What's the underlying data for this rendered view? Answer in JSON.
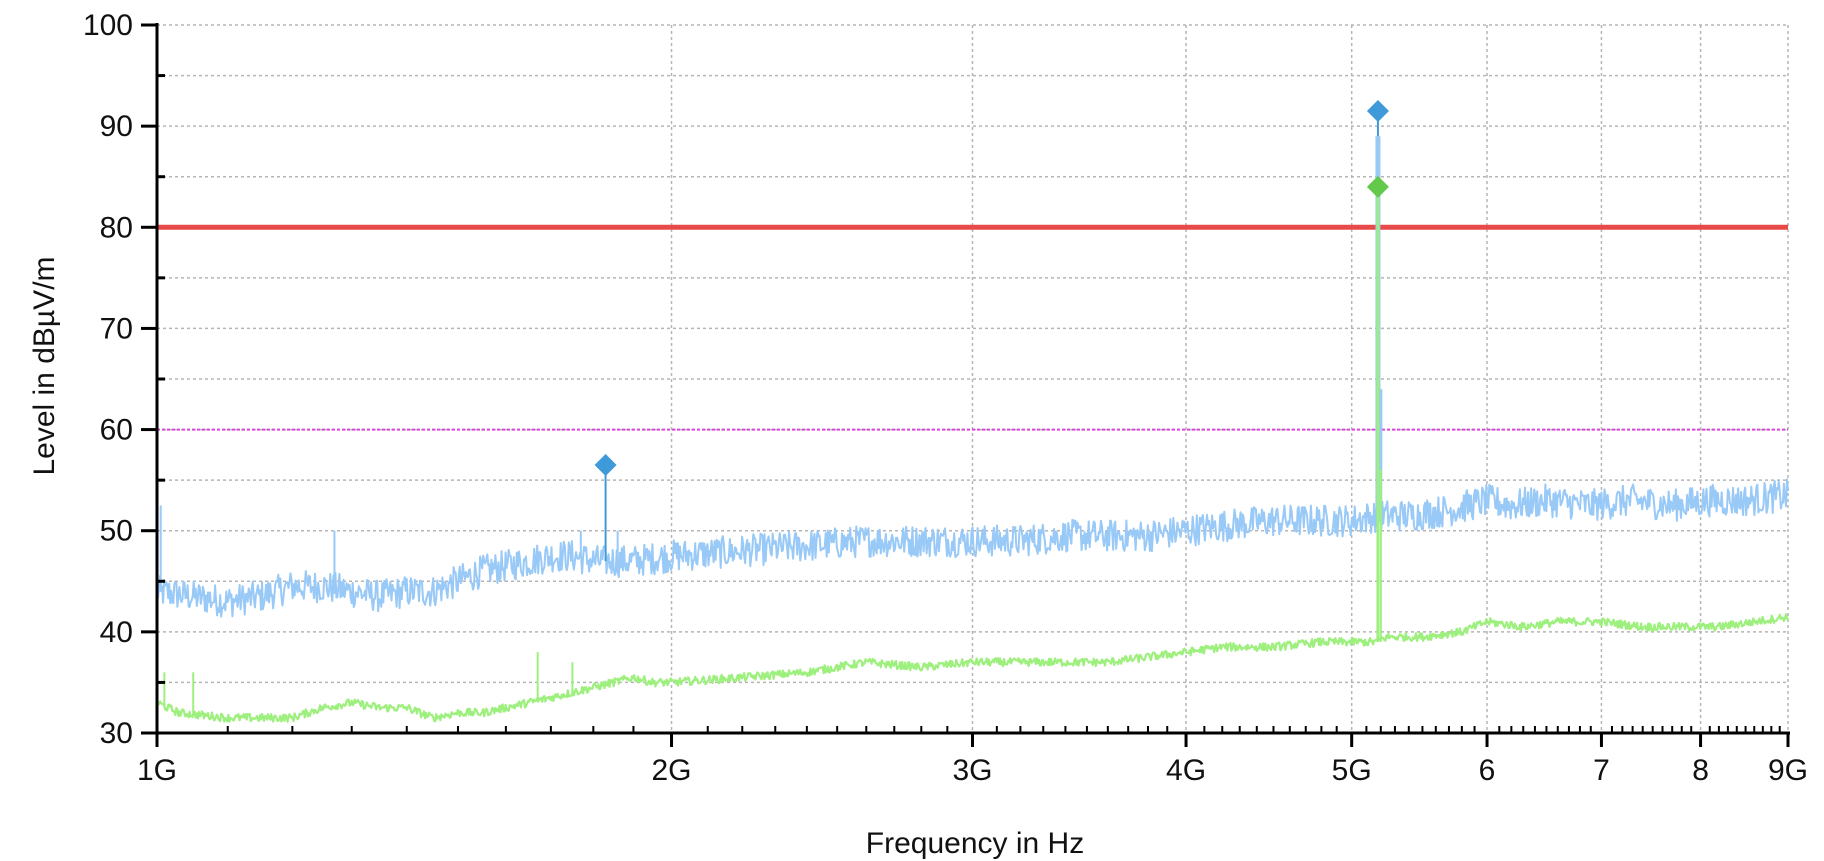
{
  "chart_data": {
    "type": "line",
    "title": "",
    "xlabel": "Frequency in Hz",
    "ylabel": "Level in dBµV/m",
    "x_scale": "log",
    "xlim": [
      1000000000,
      9000000000
    ],
    "ylim": [
      30,
      100
    ],
    "grid": true,
    "x_major_ticks": [
      {
        "value": 1000000000,
        "label": "1G"
      },
      {
        "value": 2000000000,
        "label": "2G"
      },
      {
        "value": 3000000000,
        "label": "3G"
      },
      {
        "value": 4000000000,
        "label": "4G"
      },
      {
        "value": 5000000000,
        "label": "5G"
      },
      {
        "value": 6000000000,
        "label": "6"
      },
      {
        "value": 7000000000,
        "label": "7"
      },
      {
        "value": 8000000000,
        "label": "8"
      },
      {
        "value": 9000000000,
        "label": "9G"
      }
    ],
    "y_ticks": [
      {
        "value": 30,
        "label": "30"
      },
      {
        "value": 40,
        "label": "40"
      },
      {
        "value": 50,
        "label": "50"
      },
      {
        "value": 60,
        "label": "60"
      },
      {
        "value": 70,
        "label": "70"
      },
      {
        "value": 80,
        "label": "80"
      },
      {
        "value": 90,
        "label": "90"
      },
      {
        "value": 100,
        "label": "100"
      }
    ],
    "limit_lines": [
      {
        "level": 80,
        "color": "#e84a4a",
        "style": "solid"
      },
      {
        "level": 60,
        "color": "#e040e0",
        "style": "dotted"
      }
    ],
    "series": [
      {
        "color": "#99c9f7",
        "noise": 1.6,
        "x": [
          1000000000.0,
          1050000000.0,
          1100000000.0,
          1150000000.0,
          1200000000.0,
          1250000000.0,
          1300000000.0,
          1350000000.0,
          1400000000.0,
          1450000000.0,
          1500000000.0,
          1550000000.0,
          1600000000.0,
          1650000000.0,
          1700000000.0,
          1750000000.0,
          1800000000.0,
          1850000000.0,
          1900000000.0,
          2000000000.0,
          2200000000.0,
          2400000000.0,
          2600000000.0,
          2800000000.0,
          3000000000.0,
          3200000000.0,
          3400000000.0,
          3600000000.0,
          3800000000.0,
          4000000000.0,
          4200000000.0,
          4500000000.0,
          4800000000.0,
          5000000000.0,
          5180000000.0,
          5250000000.0,
          5400000000.0,
          5700000000.0,
          6000000000.0,
          6200000000.0,
          6500000000.0,
          6900000000.0,
          7300000000.0,
          7700000000.0,
          8100000000.0,
          8500000000.0,
          9000000000.0
        ],
        "y": [
          44,
          43.5,
          43,
          43.5,
          44.5,
          44.5,
          44,
          43.5,
          44,
          44,
          45,
          46,
          46.5,
          47,
          47.5,
          47.5,
          47,
          47,
          47,
          47.5,
          48,
          48.5,
          49,
          49,
          49,
          49,
          49.5,
          49.5,
          49.5,
          50,
          50.5,
          51,
          51,
          51,
          51.5,
          51.5,
          51.5,
          52,
          53,
          52.5,
          53,
          52.5,
          53,
          52.5,
          53,
          53,
          53.5
        ]
      },
      {
        "color": "#9ef07e",
        "noise": 0.4,
        "x": [
          1000000000.0,
          1030000000.0,
          1100000000.0,
          1200000000.0,
          1250000000.0,
          1300000000.0,
          1350000000.0,
          1400000000.0,
          1450000000.0,
          1500000000.0,
          1550000000.0,
          1600000000.0,
          1700000000.0,
          1800000000.0,
          1900000000.0,
          1950000000.0,
          2000000000.0,
          2200000000.0,
          2400000000.0,
          2600000000.0,
          2800000000.0,
          3000000000.0,
          3200000000.0,
          3400000000.0,
          3600000000.0,
          3800000000.0,
          4000000000.0,
          4200000000.0,
          4500000000.0,
          4800000000.0,
          5000000000.0,
          5150000000.0,
          5250000000.0,
          5500000000.0,
          5800000000.0,
          6000000000.0,
          6300000000.0,
          6600000000.0,
          7000000000.0,
          7400000000.0,
          7800000000.0,
          8200000000.0,
          8600000000.0,
          9000000000.0
        ],
        "y": [
          33,
          32,
          31.5,
          31.5,
          32.5,
          33,
          32.5,
          32.5,
          31.5,
          32,
          32,
          32.5,
          33.5,
          34.5,
          35.5,
          35,
          35,
          35.5,
          36,
          37,
          36.5,
          37,
          37,
          37,
          37,
          37.5,
          38,
          38.5,
          38.5,
          39,
          39,
          39,
          39.5,
          39.5,
          40,
          41,
          40.5,
          41,
          41,
          40.5,
          40.5,
          40.5,
          41,
          41.5
        ]
      }
    ],
    "spikes": [
      {
        "x": 1005000000.0,
        "y": 52.5,
        "series": 0
      },
      {
        "x": 1270000000.0,
        "y": 50,
        "series": 0
      },
      {
        "x": 1770000000.0,
        "y": 50,
        "series": 0
      },
      {
        "x": 1860000000.0,
        "y": 50,
        "series": 0
      },
      {
        "x": 1010000000.0,
        "y": 36,
        "series": 1
      },
      {
        "x": 1050000000.0,
        "y": 36,
        "series": 1
      },
      {
        "x": 1670000000.0,
        "y": 38,
        "series": 1
      },
      {
        "x": 1750000000.0,
        "y": 37,
        "series": 1
      }
    ],
    "peak_spikes": [
      {
        "x": 5180000000.0,
        "y": 89,
        "base": 51,
        "width": 5,
        "color": "#99c9f7"
      },
      {
        "x": 5200000000.0,
        "y": 64,
        "base": 51,
        "width": 3,
        "color": "#99c9f7"
      },
      {
        "x": 5180000000.0,
        "y": 83,
        "base": 39,
        "width": 3,
        "color": "#9ef07e"
      },
      {
        "x": 5200000000.0,
        "y": 56,
        "base": 39,
        "width": 2,
        "color": "#9ef07e"
      }
    ],
    "markers": [
      {
        "x": 1830000000.0,
        "y": 56.5,
        "color": "#3f9ad9",
        "base": 47
      },
      {
        "x": 5180000000.0,
        "y": 91.5,
        "color": "#3f9ad9",
        "base": 89
      },
      {
        "x": 5180000000.0,
        "y": 84,
        "color": "#62c94a",
        "base": 83
      }
    ]
  }
}
